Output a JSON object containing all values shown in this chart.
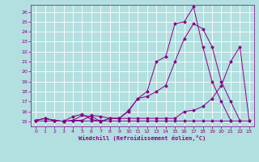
{
  "xlabel": "Windchill (Refroidissement éolien,°C)",
  "background_color": "#b2dfdf",
  "grid_color": "#d0d0d0",
  "line_color": "#880088",
  "xlim": [
    -0.5,
    23.5
  ],
  "ylim": [
    14.5,
    26.7
  ],
  "yticks": [
    15,
    16,
    17,
    18,
    19,
    20,
    21,
    22,
    23,
    24,
    25,
    26
  ],
  "xticks": [
    0,
    1,
    2,
    3,
    4,
    5,
    6,
    7,
    8,
    9,
    10,
    11,
    12,
    13,
    14,
    15,
    16,
    17,
    18,
    19,
    20,
    21,
    22,
    23
  ],
  "series": [
    {
      "x": [
        0,
        1,
        2,
        3,
        4,
        5,
        6,
        7,
        8,
        9,
        10,
        11,
        12,
        13,
        14,
        15,
        16,
        17,
        18,
        19,
        20,
        21,
        22,
        23
      ],
      "y": [
        15.1,
        15.1,
        15.1,
        15.1,
        15.1,
        15.1,
        15.1,
        15.1,
        15.1,
        15.1,
        15.1,
        15.1,
        15.1,
        15.1,
        15.1,
        15.1,
        15.1,
        15.1,
        15.1,
        15.1,
        15.1,
        15.1,
        15.1,
        15.1
      ]
    },
    {
      "x": [
        0,
        1,
        2,
        3,
        4,
        5,
        6,
        7,
        8,
        9,
        10,
        11,
        12,
        13,
        14,
        15,
        16,
        17,
        18,
        19,
        20,
        21,
        22,
        23
      ],
      "y": [
        15.1,
        15.3,
        15.1,
        15.0,
        15.1,
        15.1,
        15.6,
        15.5,
        15.3,
        15.3,
        15.3,
        15.3,
        15.3,
        15.3,
        15.3,
        15.3,
        16.0,
        16.1,
        16.5,
        17.3,
        18.6,
        21.0,
        22.5,
        15.1
      ]
    },
    {
      "x": [
        0,
        1,
        2,
        3,
        4,
        5,
        6,
        7,
        8,
        9,
        10,
        11,
        12,
        13,
        14,
        15,
        16,
        17,
        18,
        19,
        20,
        21,
        22,
        23
      ],
      "y": [
        15.1,
        15.3,
        15.1,
        15.0,
        15.1,
        15.6,
        15.5,
        15.0,
        15.3,
        15.3,
        16.1,
        17.3,
        17.5,
        18.0,
        18.6,
        21.0,
        23.3,
        24.8,
        24.3,
        22.5,
        19.0,
        17.0,
        15.1,
        null
      ]
    },
    {
      "x": [
        0,
        1,
        2,
        3,
        4,
        5,
        6,
        7,
        8,
        9,
        10,
        11,
        12,
        13,
        14,
        15,
        16,
        17,
        18,
        19,
        20,
        21,
        22,
        23
      ],
      "y": [
        15.1,
        15.3,
        15.1,
        15.0,
        15.5,
        15.7,
        15.2,
        15.0,
        15.3,
        15.3,
        16.0,
        17.3,
        18.0,
        21.0,
        21.5,
        24.8,
        25.0,
        26.5,
        22.5,
        19.0,
        17.0,
        15.1,
        null,
        null
      ]
    }
  ]
}
